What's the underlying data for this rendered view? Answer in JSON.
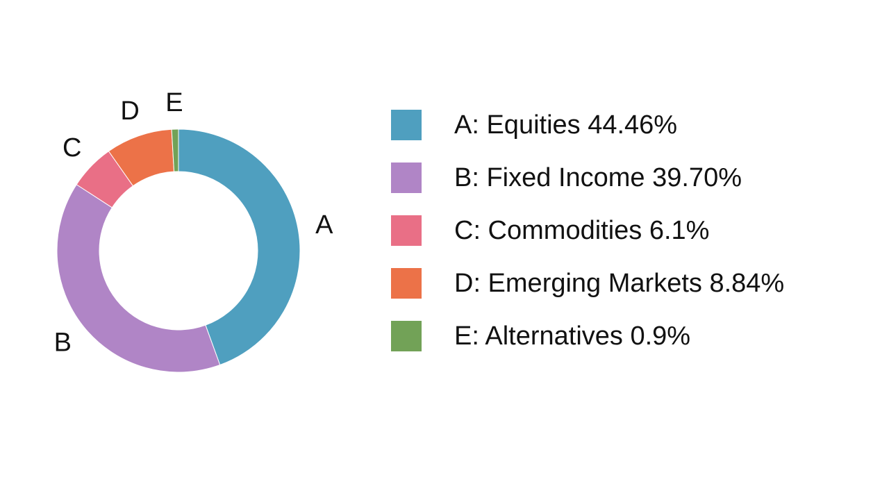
{
  "chart_data": {
    "type": "pie",
    "variant": "donut",
    "labels": [
      "A",
      "B",
      "C",
      "D",
      "E"
    ],
    "values": [
      44.46,
      39.7,
      6.1,
      8.84,
      0.9
    ],
    "colors": [
      "#4f9fbf",
      "#b085c6",
      "#e96f86",
      "#ec7248",
      "#72a257"
    ],
    "legend_position": "right",
    "legend": [
      "A: Equities 44.46%",
      "B: Fixed Income 39.70%",
      "C: Commodities 6.1%",
      "D: Emerging Markets 8.84%",
      "E: Alternatives 0.9%"
    ],
    "start_angle": "top",
    "direction": "clockwise"
  }
}
